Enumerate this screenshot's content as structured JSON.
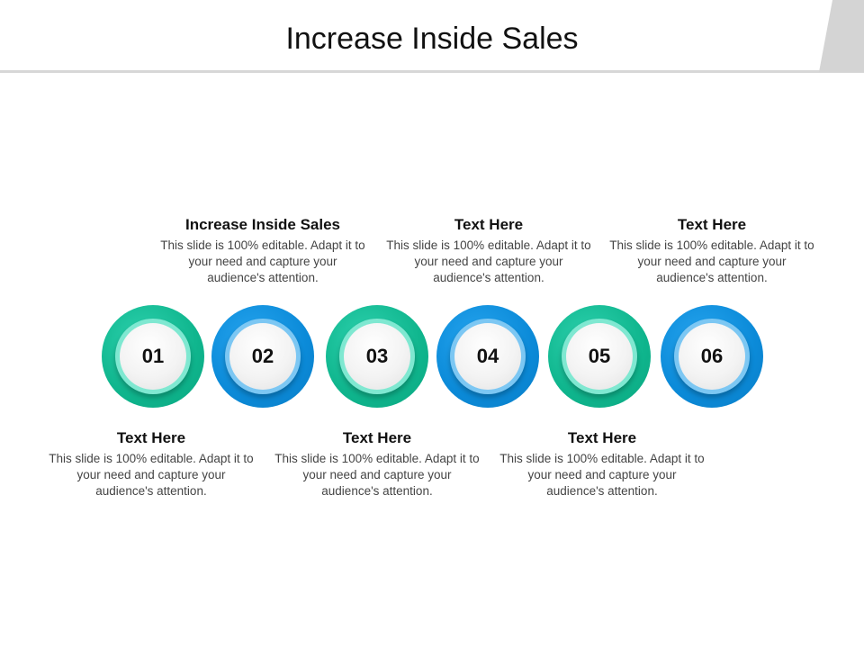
{
  "title": "Increase Inside Sales",
  "steps": [
    {
      "number": "01",
      "heading": "Text Here",
      "body": "This slide is 100% editable. Adapt it to your need and capture your audience's attention."
    },
    {
      "number": "02",
      "heading": "Increase Inside Sales",
      "body": "This slide is 100% editable. Adapt it to your need and capture your audience's attention."
    },
    {
      "number": "03",
      "heading": "Text Here",
      "body": "This slide is 100% editable. Adapt it to your need and capture your audience's attention."
    },
    {
      "number": "04",
      "heading": "Text Here",
      "body": "This slide is 100% editable. Adapt it to your need and capture your audience's attention."
    },
    {
      "number": "05",
      "heading": "Text Here",
      "body": "This slide is 100% editable. Adapt it to your need and capture your audience's attention."
    },
    {
      "number": "06",
      "heading": "Text Here",
      "body": "This slide is 100% editable. Adapt it to your need and capture your audience's attention."
    }
  ],
  "colors": {
    "green": "#0fb58d",
    "blue": "#0b8ad8"
  }
}
